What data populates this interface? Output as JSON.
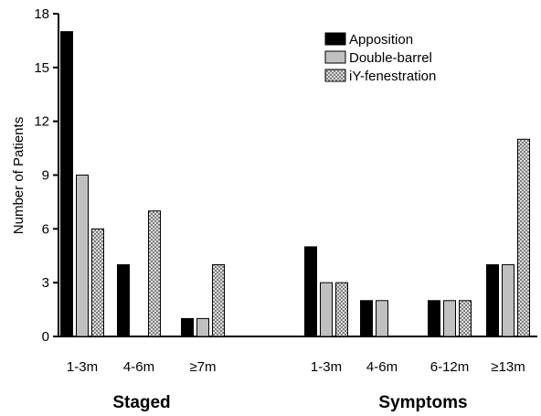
{
  "chart_data": {
    "type": "bar",
    "title": "",
    "ylabel": "Number of Patients",
    "xlabel": "",
    "ylim": [
      0,
      18
    ],
    "yticks": [
      0,
      3,
      6,
      9,
      12,
      15,
      18
    ],
    "grid": false,
    "legend_position": "top-right",
    "groups": [
      {
        "name": "Staged",
        "categories": [
          "1-3m",
          "4-6m",
          "≥7m"
        ]
      },
      {
        "name": "Symptoms",
        "categories": [
          "1-3m",
          "4-6m",
          "6-12m",
          "≥13m"
        ]
      }
    ],
    "series": [
      {
        "name": "Apposition",
        "fill": "solid-black",
        "color": "#000000",
        "values": [
          17,
          4,
          1,
          5,
          2,
          2,
          4
        ]
      },
      {
        "name": "Double-barrel",
        "fill": "solid-gray",
        "color": "#c0c0c0",
        "values": [
          9,
          0,
          1,
          3,
          2,
          2,
          4
        ]
      },
      {
        "name": "iY-fenestration",
        "fill": "crosshatch",
        "color": "#9a9a9a",
        "values": [
          6,
          7,
          4,
          3,
          0,
          2,
          11
        ]
      }
    ]
  }
}
